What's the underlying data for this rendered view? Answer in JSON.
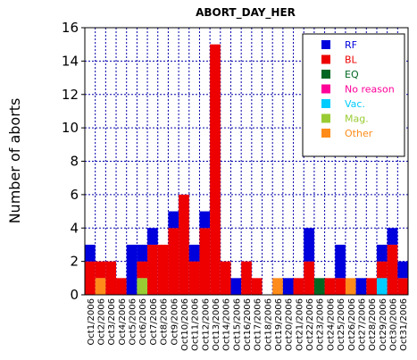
{
  "chart_data": {
    "type": "bar",
    "stacked": true,
    "title": "ABORT_DAY_HER",
    "xlabel": "",
    "ylabel": "Number of aborts",
    "ylim": [
      0,
      16
    ],
    "yticks": [
      0,
      2,
      4,
      6,
      8,
      10,
      12,
      14,
      16
    ],
    "grid": true,
    "legend_position": "top-right",
    "categories": [
      "Oct1/2006",
      "Oct2/2006",
      "Oct3/2006",
      "Oct4/2006",
      "Oct5/2006",
      "Oct6/2006",
      "Oct7/2006",
      "Oct8/2006",
      "Oct9/2006",
      "Oct10/2006",
      "Oct11/2006",
      "Oct12/2006",
      "Oct13/2006",
      "Oct14/2006",
      "Oct15/2006",
      "Oct16/2006",
      "Oct17/2006",
      "Oct18/2006",
      "Oct19/2006",
      "Oct20/2006",
      "Oct21/2006",
      "Oct22/2006",
      "Oct23/2006",
      "Oct24/2006",
      "Oct25/2006",
      "Oct26/2006",
      "Oct27/2006",
      "Oct28/2006",
      "Oct29/2006",
      "Oct30/2006",
      "Oct31/2006"
    ],
    "series": [
      {
        "name": "Other",
        "color": "#ff8c1a",
        "values": [
          0,
          1,
          0,
          0,
          0,
          0,
          0,
          0,
          0,
          0,
          0,
          0,
          0,
          0,
          0,
          0,
          0,
          0,
          1,
          0,
          0,
          0,
          0,
          0,
          0,
          1,
          0,
          0,
          0,
          0,
          0
        ]
      },
      {
        "name": "Vac.",
        "color": "#00ccff",
        "values": [
          0,
          0,
          0,
          0,
          0,
          0,
          0,
          0,
          0,
          0,
          0,
          0,
          0,
          0,
          0,
          0,
          0,
          0,
          0,
          0,
          0,
          0,
          0,
          0,
          0,
          0,
          0,
          0,
          1,
          0,
          0
        ]
      },
      {
        "name": "Mag.",
        "color": "#99cc33",
        "values": [
          0,
          0,
          0,
          0,
          0,
          1,
          0,
          0,
          0,
          0,
          0,
          0,
          0,
          0,
          0,
          0,
          0,
          0,
          0,
          0,
          0,
          0,
          0,
          0,
          0,
          0,
          0,
          0,
          0,
          0,
          0
        ]
      },
      {
        "name": "No reason",
        "color": "#ff0099",
        "values": [
          0,
          0,
          0,
          0,
          0,
          0,
          0,
          0,
          0,
          0,
          0,
          0,
          0,
          0,
          0,
          0,
          0,
          0,
          0,
          0,
          0,
          0,
          0,
          0,
          0,
          0,
          0,
          0,
          0,
          0,
          0
        ]
      },
      {
        "name": "EQ",
        "color": "#006622",
        "values": [
          0,
          0,
          0,
          0,
          0,
          0,
          0,
          0,
          0,
          0,
          0,
          0,
          0,
          0,
          0,
          0,
          0,
          0,
          0,
          0,
          0,
          0,
          1,
          0,
          0,
          0,
          0,
          0,
          0,
          0,
          0
        ]
      },
      {
        "name": "BL",
        "color": "#ee0000",
        "values": [
          2,
          1,
          2,
          1,
          0,
          1,
          3,
          3,
          4,
          6,
          2,
          4,
          15,
          2,
          0,
          2,
          1,
          0,
          0,
          0,
          1,
          2,
          0,
          1,
          1,
          0,
          0,
          1,
          1,
          3,
          1
        ]
      },
      {
        "name": "RF",
        "color": "#0000dd",
        "values": [
          1,
          0,
          0,
          0,
          3,
          1,
          1,
          0,
          1,
          0,
          1,
          1,
          0,
          0,
          1,
          0,
          0,
          0,
          0,
          1,
          0,
          2,
          0,
          0,
          2,
          0,
          1,
          0,
          1,
          1,
          1
        ]
      }
    ],
    "legend_order": [
      "RF",
      "BL",
      "EQ",
      "No reason",
      "Vac.",
      "Mag.",
      "Other"
    ]
  }
}
